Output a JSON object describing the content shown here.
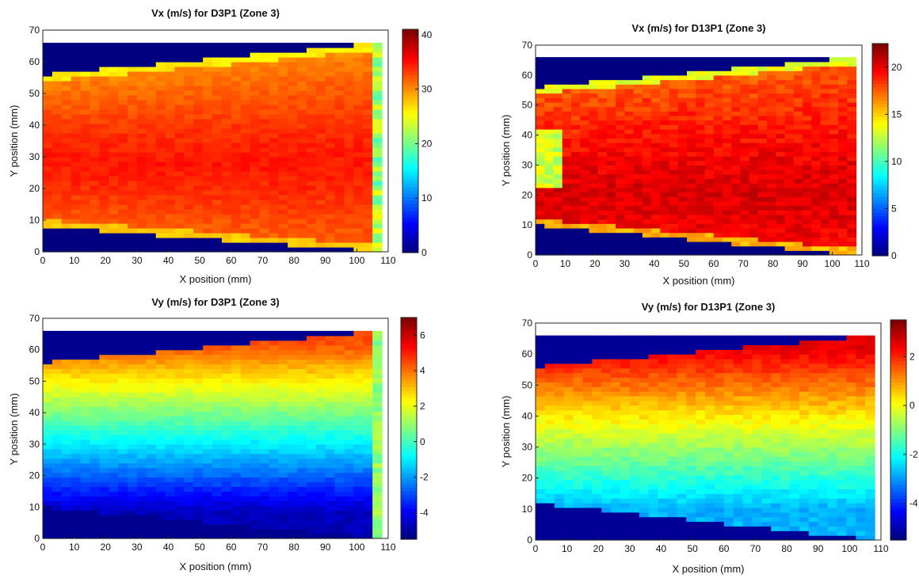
{
  "chart_data": [
    {
      "type": "heatmap",
      "title": "Vx (m/s) for D3P1 (Zone 3)",
      "xlabel": "X position (mm)",
      "ylabel": "Y position (mm)",
      "xlim": [
        0,
        110
      ],
      "ylim": [
        0,
        70
      ],
      "xticks": [
        0,
        10,
        20,
        30,
        40,
        50,
        60,
        70,
        80,
        90,
        100,
        110
      ],
      "yticks": [
        0,
        10,
        20,
        30,
        40,
        50,
        60,
        70
      ],
      "colorbar": {
        "min": 0,
        "max": 41,
        "ticks": [
          0,
          10,
          20,
          30,
          40
        ]
      },
      "field": {
        "x_extent": [
          0,
          108
        ],
        "y_extent": [
          0,
          66
        ],
        "nx": 36,
        "ny": 44,
        "core_value": 35,
        "edge_value": 30,
        "core_y": 28,
        "top_boundary_y": [
          56,
          66
        ],
        "bottom_boundary_y": [
          8,
          0
        ],
        "outside_value": 0,
        "right_strip_x": 104,
        "right_strip_value": 22,
        "edge_column_x": 107,
        "edge_column_value": 0
      }
    },
    {
      "type": "heatmap",
      "title": "Vx (m/s) for D13P1 (Zone 3)",
      "xlabel": "X position (mm)",
      "ylabel": "Y position (mm)",
      "xlim": [
        0,
        110
      ],
      "ylim": [
        0,
        70
      ],
      "xticks": [
        0,
        10,
        20,
        30,
        40,
        50,
        60,
        70,
        80,
        90,
        100,
        110
      ],
      "yticks": [
        0,
        10,
        20,
        30,
        40,
        50,
        60,
        70
      ],
      "colorbar": {
        "min": 0,
        "max": 22.5,
        "ticks": [
          0,
          5,
          10,
          15,
          20
        ]
      },
      "field": {
        "x_extent": [
          0,
          108
        ],
        "y_extent": [
          0,
          66
        ],
        "nx": 36,
        "ny": 44,
        "core_value": 20.5,
        "edge_value": 17.5,
        "core_y": 20,
        "top_boundary_y": [
          56,
          66
        ],
        "bottom_boundary_y": [
          10,
          0
        ],
        "outside_value": 0,
        "inlet_patch": {
          "x_max": 10,
          "y_range": [
            22,
            42
          ],
          "value": 13
        },
        "edge_column_x": 107,
        "edge_column_value": 0
      }
    },
    {
      "type": "heatmap",
      "title": "Vy (m/s) for D3P1 (Zone 3)",
      "xlabel": "X position (mm)",
      "ylabel": "Y position (mm)",
      "xlim": [
        0,
        110
      ],
      "ylim": [
        0,
        70
      ],
      "xticks": [
        0,
        10,
        20,
        30,
        40,
        50,
        60,
        70,
        80,
        90,
        100,
        110
      ],
      "yticks": [
        0,
        10,
        20,
        30,
        40,
        50,
        60,
        70
      ],
      "colorbar": {
        "min": -5.5,
        "max": 7,
        "ticks": [
          -4,
          -2,
          0,
          2,
          4,
          6
        ]
      },
      "field": {
        "x_extent": [
          0,
          108
        ],
        "y_extent": [
          0,
          66
        ],
        "nx": 36,
        "ny": 44,
        "low_value": -4.8,
        "high_value": 4.5,
        "gradient_y": [
          8,
          62
        ],
        "top_boundary_y": [
          56,
          66
        ],
        "bottom_boundary_y": [
          10,
          0
        ],
        "outside_top_value": -5.3,
        "outside_bottom_value": -5.3,
        "right_strip_x": 104,
        "right_strip_value": 1
      }
    },
    {
      "type": "heatmap",
      "title": "Vy (m/s) for D13P1 (Zone 3)",
      "xlabel": "X position (mm)",
      "ylabel": "Y position (mm)",
      "xlim": [
        0,
        110
      ],
      "ylim": [
        0,
        70
      ],
      "xticks": [
        0,
        10,
        20,
        30,
        40,
        50,
        60,
        70,
        80,
        90,
        100,
        110
      ],
      "yticks": [
        0,
        10,
        20,
        30,
        40,
        50,
        60,
        70
      ],
      "colorbar": {
        "min": -5.5,
        "max": 3.5,
        "ticks": [
          -4,
          -2,
          0,
          2
        ]
      },
      "field": {
        "x_extent": [
          0,
          108
        ],
        "y_extent": [
          0,
          66
        ],
        "nx": 36,
        "ny": 44,
        "low_value": -2.8,
        "high_value": 2.6,
        "gradient_y": [
          10,
          62
        ],
        "top_boundary_y": [
          56,
          66
        ],
        "bottom_boundary_y": [
          12,
          0
        ],
        "outside_top_value": -5.3,
        "outside_bottom_value": -5.3,
        "edge_column_x": 107,
        "edge_column_value": 0.3
      }
    }
  ]
}
